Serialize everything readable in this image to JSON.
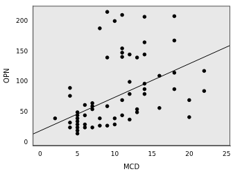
{
  "chart_data": {
    "type": "scatter",
    "x_label": "MCD",
    "y_label": "OPN",
    "x": [
      2,
      4,
      4,
      4,
      4,
      5,
      5,
      5,
      5,
      5,
      5,
      5,
      5,
      6,
      6,
      6,
      6,
      7,
      7,
      7,
      7,
      8,
      8,
      8,
      9,
      9,
      9,
      9,
      10,
      10,
      10,
      11,
      11,
      11,
      11,
      11,
      11,
      12,
      12,
      12,
      12,
      13,
      13,
      13,
      14,
      14,
      14,
      14,
      14,
      14,
      16,
      16,
      18,
      18,
      18,
      18,
      20,
      20,
      22,
      22
    ],
    "values": [
      40,
      90,
      77,
      33,
      25,
      50,
      45,
      40,
      35,
      30,
      25,
      20,
      15,
      30,
      25,
      45,
      62,
      65,
      60,
      55,
      25,
      40,
      28,
      188,
      215,
      140,
      60,
      28,
      200,
      40,
      30,
      155,
      148,
      141,
      210,
      70,
      45,
      145,
      100,
      80,
      38,
      140,
      55,
      50,
      207,
      165,
      145,
      97,
      88,
      80,
      110,
      57,
      208,
      168,
      115,
      88,
      70,
      42,
      118,
      85
    ],
    "color": "#000000",
    "trend_line": {
      "x": [
        -1,
        25.5
      ],
      "values": [
        14,
        160
      ],
      "color": "#000000"
    },
    "xlim": [
      -1,
      25.5
    ],
    "xticks": [
      0,
      5,
      10,
      15,
      20,
      25
    ],
    "ylim": [
      -5,
      225
    ],
    "yticks": [
      0,
      50,
      100,
      150,
      200
    ],
    "grid": false
  }
}
